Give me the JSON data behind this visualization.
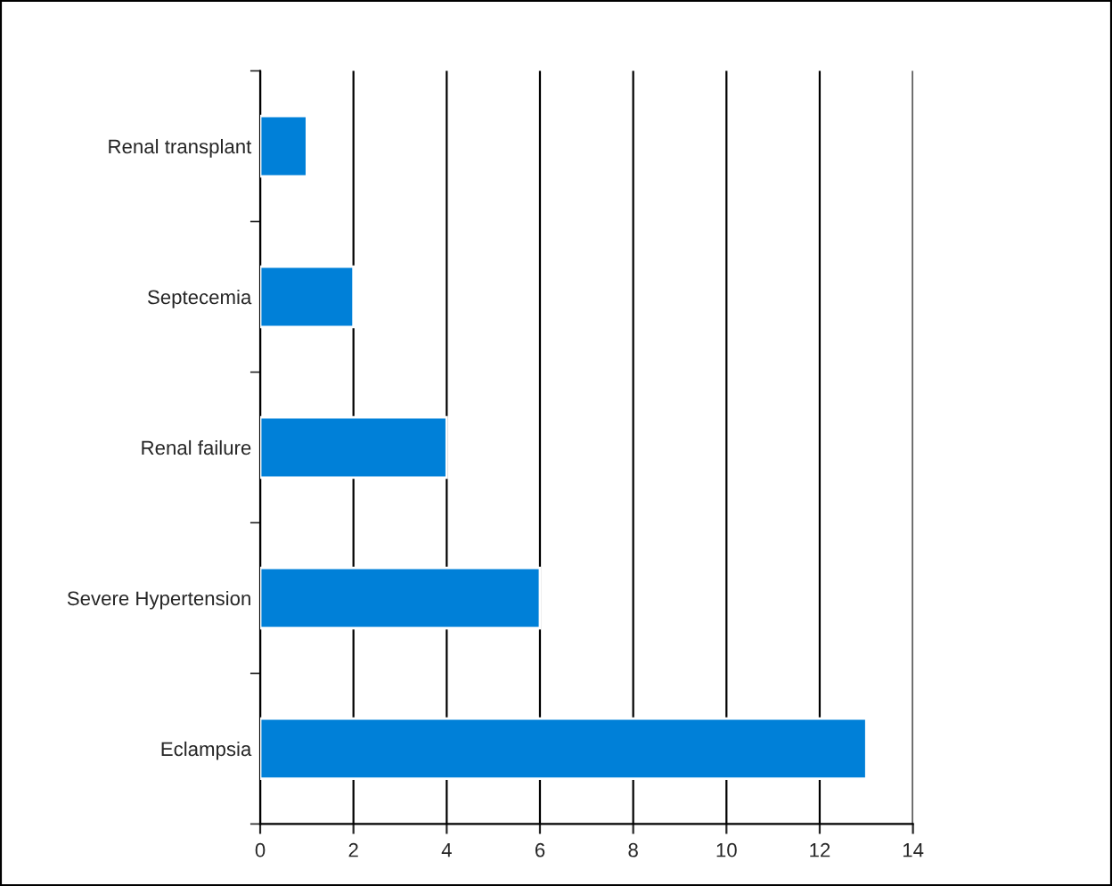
{
  "chart_data": {
    "type": "bar",
    "orientation": "horizontal",
    "categories": [
      "Renal transplant",
      "Septecemia",
      "Renal failure",
      "Severe Hypertension",
      "Eclampsia"
    ],
    "values": [
      1,
      2,
      4,
      6,
      13
    ],
    "color": "#0080d8",
    "xlim": [
      0,
      14
    ],
    "xticks": [
      0,
      2,
      4,
      6,
      8,
      10,
      12,
      14
    ],
    "grid": "x"
  }
}
